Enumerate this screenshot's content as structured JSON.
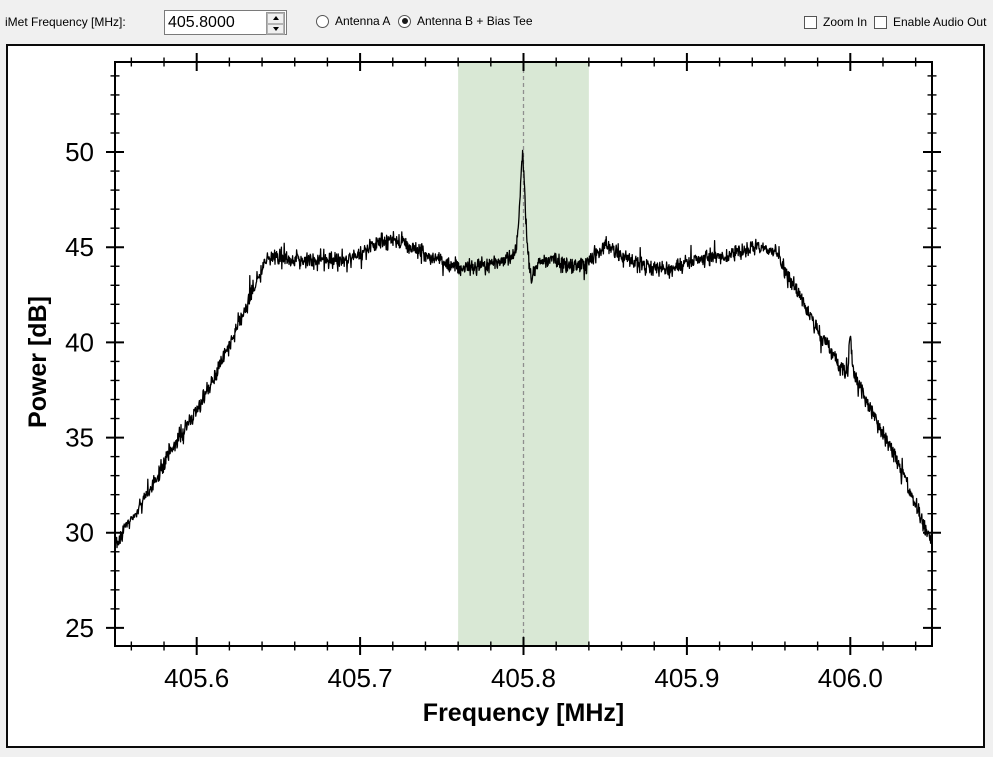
{
  "toolbar": {
    "frequency_label": "iMet Frequency [MHz]:",
    "frequency_value": "405.8000",
    "radios": [
      {
        "label": "Antenna A",
        "selected": false
      },
      {
        "label": "Antenna B + Bias Tee",
        "selected": true
      }
    ],
    "checkboxes": [
      {
        "label": "Zoom In",
        "checked": false
      },
      {
        "label": "Enable Audio Out",
        "checked": false
      }
    ]
  },
  "chart_data": {
    "type": "line",
    "title": "",
    "xlabel": "Frequency [MHz]",
    "ylabel": "Power [dB]",
    "xlim": [
      405.55,
      406.05
    ],
    "ylim": [
      24.05,
      54.73
    ],
    "grid": false,
    "legend": "none",
    "x_major_ticks": {
      "values": [
        405.6,
        405.7,
        405.8,
        405.9,
        406.0
      ],
      "labels": [
        "405.6",
        "405.7",
        "405.8",
        "405.9",
        "406.0"
      ]
    },
    "x_minor_step": 0.02,
    "y_major_ticks": {
      "values": [
        25,
        30,
        35,
        40,
        45,
        50
      ],
      "labels": [
        "25",
        "30",
        "35",
        "40",
        "45",
        "50"
      ]
    },
    "y_minor_step": 1,
    "colors": {
      "trace": "#000000",
      "band": "#d9e8d5",
      "marker": "#8f8f8f",
      "frame": "#000000",
      "panel_border": "#0a0a0a"
    },
    "highlight_band": {
      "x0": 405.76,
      "x1": 405.84
    },
    "marker_line_x": 405.8,
    "noise_db": 0.21,
    "series": [
      {
        "name": "spectrum",
        "anchors": [
          [
            405.55,
            29.8
          ],
          [
            405.552,
            29.4
          ],
          [
            405.555,
            30.1
          ],
          [
            405.558,
            30.5
          ],
          [
            405.562,
            30.9
          ],
          [
            405.568,
            31.8
          ],
          [
            405.577,
            33.1
          ],
          [
            405.586,
            34.6
          ],
          [
            405.595,
            35.8
          ],
          [
            405.604,
            37.0
          ],
          [
            405.613,
            38.6
          ],
          [
            405.62,
            39.8
          ],
          [
            405.626,
            41.0
          ],
          [
            405.632,
            42.2
          ],
          [
            405.638,
            43.4
          ],
          [
            405.644,
            44.4
          ],
          [
            405.65,
            44.5
          ],
          [
            405.66,
            44.4
          ],
          [
            405.67,
            44.3
          ],
          [
            405.68,
            44.3
          ],
          [
            405.69,
            44.4
          ],
          [
            405.7,
            44.7
          ],
          [
            405.71,
            45.2
          ],
          [
            405.718,
            45.4
          ],
          [
            405.726,
            45.2
          ],
          [
            405.735,
            44.8
          ],
          [
            405.745,
            44.4
          ],
          [
            405.755,
            44.1
          ],
          [
            405.762,
            43.9
          ],
          [
            405.77,
            43.9
          ],
          [
            405.78,
            44.1
          ],
          [
            405.79,
            44.3
          ],
          [
            405.7935,
            44.5
          ],
          [
            405.796,
            45.3
          ],
          [
            405.7975,
            47.0
          ],
          [
            405.7988,
            49.3
          ],
          [
            405.7995,
            49.8
          ],
          [
            405.8003,
            48.6
          ],
          [
            405.8014,
            46.5
          ],
          [
            405.8025,
            44.9
          ],
          [
            405.8035,
            44.0
          ],
          [
            405.8045,
            43.4
          ],
          [
            405.8065,
            43.8
          ],
          [
            405.81,
            44.2
          ],
          [
            405.815,
            44.4
          ],
          [
            405.822,
            44.2
          ],
          [
            405.83,
            44.0
          ],
          [
            405.838,
            44.1
          ],
          [
            405.845,
            44.8
          ],
          [
            405.851,
            45.1
          ],
          [
            405.857,
            44.8
          ],
          [
            405.865,
            44.3
          ],
          [
            405.875,
            44.0
          ],
          [
            405.886,
            43.8
          ],
          [
            405.895,
            44.0
          ],
          [
            405.905,
            44.3
          ],
          [
            405.915,
            44.5
          ],
          [
            405.925,
            44.6
          ],
          [
            405.933,
            44.8
          ],
          [
            405.941,
            45.0
          ],
          [
            405.948,
            44.9
          ],
          [
            405.953,
            44.7
          ],
          [
            405.958,
            44.2
          ],
          [
            405.963,
            43.3
          ],
          [
            405.968,
            42.7
          ],
          [
            405.973,
            41.8
          ],
          [
            405.978,
            41.0
          ],
          [
            405.983,
            40.3
          ],
          [
            405.988,
            39.5
          ],
          [
            405.993,
            38.9
          ],
          [
            405.997,
            38.5
          ],
          [
            405.9985,
            38.4
          ],
          [
            405.9995,
            40.4
          ],
          [
            406.0003,
            40.1
          ],
          [
            406.0015,
            38.7
          ],
          [
            406.003,
            38.1
          ],
          [
            406.006,
            37.6
          ],
          [
            406.01,
            36.9
          ],
          [
            406.015,
            36.1
          ],
          [
            406.02,
            35.2
          ],
          [
            406.026,
            34.2
          ],
          [
            406.032,
            33.2
          ],
          [
            406.038,
            31.9
          ],
          [
            406.044,
            30.6
          ],
          [
            406.05,
            29.5
          ]
        ]
      }
    ]
  }
}
